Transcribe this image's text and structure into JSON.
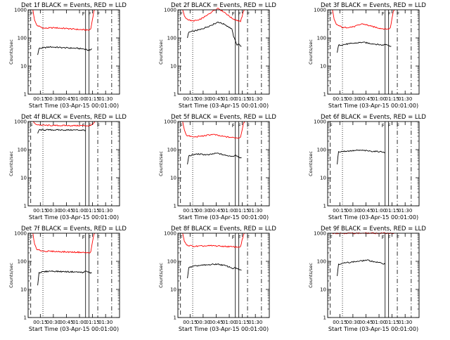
{
  "colors": {
    "events": "#000000",
    "lld": "#ff0000",
    "background": "#ffffff",
    "axes": "#000000"
  },
  "chart_data": [
    {
      "type": "line",
      "title": "Det 1f BLACK = Events, RED = LLD",
      "xlabel": "Start Time (03-Apr-15 00:01:00)",
      "ylabel": "Counts/sec",
      "x_ticks": [
        "00:15",
        "00:30",
        "00:45",
        "01:00",
        "01:15",
        "01:30"
      ],
      "y_ticks": [
        "1",
        "10",
        "100",
        "1000"
      ],
      "y_scale": "log",
      "ylim": [
        1,
        1000
      ],
      "xlim_minutes": [
        0,
        105
      ],
      "flags": [
        "F",
        "F",
        "F",
        "F"
      ],
      "series": [
        {
          "color": "red",
          "x_min": [
            5.5,
            7.5,
            10,
            18,
            30,
            45,
            58,
            70,
            72,
            75.5,
            76.5
          ],
          "values": [
            1000,
            420,
            280,
            220,
            230,
            215,
            200,
            190,
            210,
            900,
            1000
          ]
        },
        {
          "color": "black",
          "x_min": [
            11,
            12.5,
            25,
            40,
            55,
            66,
            70,
            73
          ],
          "values": [
            25,
            42,
            48,
            45,
            43,
            40,
            35,
            42
          ]
        }
      ],
      "vlines": [
        {
          "x_min": 3,
          "style": "dashed"
        },
        {
          "x_min": 17,
          "style": "dotted"
        },
        {
          "x_min": 66,
          "style": "solid"
        },
        {
          "x_min": 70,
          "style": "solid"
        },
        {
          "x_min": 80,
          "style": "dashdot"
        },
        {
          "x_min": 96,
          "style": "dashdot"
        }
      ]
    },
    {
      "type": "line",
      "title": "Det 2f BLACK = Events, RED = LLD",
      "xlabel": "Start Time (03-Apr-15 00:01:00)",
      "ylabel": "Counts/sec",
      "x_ticks": [
        "00:15",
        "00:30",
        "00:45",
        "01:00",
        "01:15",
        "01:30"
      ],
      "y_ticks": [
        "1",
        "10",
        "100",
        "1000"
      ],
      "y_scale": "log",
      "ylim": [
        1,
        1000
      ],
      "xlim_minutes": [
        0,
        105
      ],
      "flags": [
        "F",
        "F",
        "F",
        "F"
      ],
      "series": [
        {
          "color": "red",
          "x_min": [
            5.5,
            7.5,
            10,
            16,
            24,
            33,
            40,
            46,
            54,
            62,
            72,
            75.5,
            76.5
          ],
          "values": [
            1000,
            600,
            480,
            400,
            430,
            620,
            900,
            1150,
            800,
            500,
            380,
            900,
            1000
          ]
        },
        {
          "color": "black",
          "x_min": [
            11,
            12.5,
            18,
            26,
            34,
            42,
            46,
            54,
            62,
            64,
            66,
            68,
            70,
            73
          ],
          "values": [
            100,
            160,
            175,
            200,
            250,
            320,
            370,
            300,
            210,
            110,
            80,
            55,
            60,
            50
          ]
        }
      ],
      "vlines": [
        {
          "x_min": 3,
          "style": "dashed"
        },
        {
          "x_min": 17,
          "style": "dotted"
        },
        {
          "x_min": 66,
          "style": "solid"
        },
        {
          "x_min": 70,
          "style": "solid"
        },
        {
          "x_min": 80,
          "style": "dashdot"
        },
        {
          "x_min": 96,
          "style": "dashdot"
        }
      ]
    },
    {
      "type": "line",
      "title": "Det 3f BLACK = Events, RED = LLD",
      "xlabel": "Start Time (03-Apr-15 00:01:00)",
      "ylabel": "Counts/sec",
      "x_ticks": [
        "00:15",
        "00:30",
        "00:45",
        "01:00",
        "01:15",
        "01:30"
      ],
      "y_ticks": [
        "1",
        "10",
        "100",
        "1000"
      ],
      "y_scale": "log",
      "ylim": [
        1,
        1000
      ],
      "xlim_minutes": [
        0,
        105
      ],
      "flags": [
        "F",
        "F",
        "F",
        "F"
      ],
      "series": [
        {
          "color": "red",
          "x_min": [
            5.5,
            7.5,
            10,
            18,
            30,
            40,
            50,
            62,
            70,
            72,
            75.5,
            76.5
          ],
          "values": [
            1000,
            450,
            300,
            230,
            250,
            320,
            260,
            215,
            205,
            230,
            900,
            1000
          ]
        },
        {
          "color": "black",
          "x_min": [
            11,
            12.5,
            25,
            40,
            55,
            64,
            66,
            70,
            73
          ],
          "values": [
            30,
            55,
            62,
            70,
            60,
            55,
            60,
            55,
            50
          ]
        }
      ],
      "vlines": [
        {
          "x_min": 3,
          "style": "dashed"
        },
        {
          "x_min": 17,
          "style": "dotted"
        },
        {
          "x_min": 66,
          "style": "solid"
        },
        {
          "x_min": 70,
          "style": "solid"
        },
        {
          "x_min": 80,
          "style": "dashdot"
        },
        {
          "x_min": 96,
          "style": "dashdot"
        }
      ]
    },
    {
      "type": "line",
      "title": "Det 4f BLACK = Events, RED = LLD",
      "xlabel": "Start Time (03-Apr-15 00:01:00)",
      "ylabel": "Counts/sec",
      "x_ticks": [
        "00:15",
        "00:30",
        "00:45",
        "01:00",
        "01:15",
        "01:30"
      ],
      "y_ticks": [
        "1",
        "10",
        "100",
        "1000"
      ],
      "y_scale": "log",
      "ylim": [
        1,
        1000
      ],
      "xlim_minutes": [
        0,
        105
      ],
      "flags": [
        "F",
        "F",
        "F",
        "F"
      ],
      "series": [
        {
          "color": "red",
          "x_min": [
            5.5,
            7.5,
            10,
            16,
            30,
            45,
            58,
            70,
            72,
            75.5,
            76.5
          ],
          "values": [
            1000,
            850,
            780,
            740,
            720,
            720,
            715,
            710,
            720,
            900,
            1000
          ]
        },
        {
          "color": "black",
          "x_min": [
            11,
            12.5,
            25,
            40,
            55,
            63,
            66
          ],
          "values": [
            380,
            500,
            505,
            500,
            500,
            495,
            490
          ]
        }
      ],
      "vlines": [
        {
          "x_min": 3,
          "style": "dashed"
        },
        {
          "x_min": 17,
          "style": "dotted"
        },
        {
          "x_min": 66,
          "style": "solid"
        },
        {
          "x_min": 70,
          "style": "solid"
        },
        {
          "x_min": 80,
          "style": "dashdot"
        },
        {
          "x_min": 96,
          "style": "dashdot"
        }
      ]
    },
    {
      "type": "line",
      "title": "Det 5f BLACK = Events, RED = LLD",
      "xlabel": "Start Time (03-Apr-15 00:01:00)",
      "ylabel": "Counts/sec",
      "x_ticks": [
        "00:15",
        "00:30",
        "00:45",
        "01:00",
        "01:15",
        "01:30"
      ],
      "y_ticks": [
        "1",
        "10",
        "100",
        "1000"
      ],
      "y_scale": "log",
      "ylim": [
        1,
        1000
      ],
      "xlim_minutes": [
        0,
        105
      ],
      "flags": [
        "F",
        "F",
        "F",
        "F"
      ],
      "series": [
        {
          "color": "red",
          "x_min": [
            5.5,
            7.5,
            10,
            18,
            30,
            40,
            50,
            62,
            70,
            72,
            75.5,
            76.5
          ],
          "values": [
            1000,
            500,
            320,
            280,
            310,
            350,
            300,
            270,
            260,
            280,
            900,
            1000
          ]
        },
        {
          "color": "black",
          "x_min": [
            11,
            12.5,
            22,
            35,
            45,
            55,
            64,
            66,
            70,
            73
          ],
          "values": [
            30,
            60,
            70,
            65,
            75,
            62,
            58,
            65,
            55,
            50
          ]
        }
      ],
      "vlines": [
        {
          "x_min": 3,
          "style": "dashed"
        },
        {
          "x_min": 17,
          "style": "dotted"
        },
        {
          "x_min": 66,
          "style": "solid"
        },
        {
          "x_min": 70,
          "style": "solid"
        },
        {
          "x_min": 80,
          "style": "dashdot"
        },
        {
          "x_min": 96,
          "style": "dashdot"
        }
      ]
    },
    {
      "type": "line",
      "title": "Det 6f BLACK = Events, RED = LLD",
      "xlabel": "Start Time (03-Apr-15 00:01:00)",
      "ylabel": "Counts/sec",
      "x_ticks": [
        "00:15",
        "00:30",
        "00:45",
        "01:00",
        "01:15",
        "01:30"
      ],
      "y_ticks": [
        "1",
        "10",
        "100",
        "1000"
      ],
      "y_scale": "log",
      "ylim": [
        1,
        1000
      ],
      "xlim_minutes": [
        0,
        105
      ],
      "flags": [
        "F",
        "F",
        "F",
        "F"
      ],
      "series": [
        {
          "color": "black",
          "x_min": [
            11,
            12.5,
            25,
            38,
            50,
            60,
            64,
            66
          ],
          "values": [
            30,
            85,
            90,
            95,
            88,
            85,
            82,
            80
          ]
        }
      ],
      "vlines": [
        {
          "x_min": 3,
          "style": "dashed"
        },
        {
          "x_min": 17,
          "style": "dotted"
        },
        {
          "x_min": 66,
          "style": "solid"
        },
        {
          "x_min": 70,
          "style": "solid"
        },
        {
          "x_min": 80,
          "style": "dashdot"
        },
        {
          "x_min": 96,
          "style": "dashdot"
        }
      ]
    },
    {
      "type": "line",
      "title": "Det 7f BLACK = Events, RED = LLD",
      "xlabel": "Start Time (03-Apr-15 00:01:00)",
      "ylabel": "Counts/sec",
      "x_ticks": [
        "00:15",
        "00:30",
        "00:45",
        "01:00",
        "01:15",
        "01:30"
      ],
      "y_ticks": [
        "1",
        "10",
        "100",
        "1000"
      ],
      "y_scale": "log",
      "ylim": [
        1,
        1000
      ],
      "xlim_minutes": [
        0,
        105
      ],
      "flags": [
        "F",
        "F",
        "F",
        "F"
      ],
      "series": [
        {
          "color": "red",
          "x_min": [
            5.5,
            7.5,
            10,
            18,
            30,
            45,
            60,
            70,
            72,
            75.5,
            76.5
          ],
          "values": [
            1000,
            400,
            260,
            230,
            225,
            215,
            210,
            200,
            220,
            900,
            1000
          ]
        },
        {
          "color": "black",
          "x_min": [
            11,
            12.5,
            25,
            40,
            55,
            64,
            66,
            70,
            73
          ],
          "values": [
            14,
            40,
            45,
            43,
            42,
            40,
            45,
            40,
            38
          ]
        }
      ],
      "vlines": [
        {
          "x_min": 3,
          "style": "dashed"
        },
        {
          "x_min": 17,
          "style": "dotted"
        },
        {
          "x_min": 66,
          "style": "solid"
        },
        {
          "x_min": 70,
          "style": "solid"
        },
        {
          "x_min": 80,
          "style": "dashdot"
        },
        {
          "x_min": 96,
          "style": "dashdot"
        }
      ]
    },
    {
      "type": "line",
      "title": "Det 8f BLACK = Events, RED = LLD",
      "xlabel": "Start Time (03-Apr-15 00:01:00)",
      "ylabel": "Counts/sec",
      "x_ticks": [
        "00:15",
        "00:30",
        "00:45",
        "01:00",
        "01:15",
        "01:30"
      ],
      "y_ticks": [
        "1",
        "10",
        "100",
        "1000"
      ],
      "y_scale": "log",
      "ylim": [
        1,
        1000
      ],
      "xlim_minutes": [
        0,
        105
      ],
      "flags": [
        "F",
        "F",
        "F",
        "F"
      ],
      "series": [
        {
          "color": "red",
          "x_min": [
            5.5,
            7.5,
            10,
            18,
            30,
            40,
            50,
            62,
            70,
            72,
            75.5,
            76.5
          ],
          "values": [
            1000,
            500,
            380,
            340,
            350,
            360,
            345,
            330,
            320,
            340,
            900,
            1000
          ]
        },
        {
          "color": "black",
          "x_min": [
            11,
            12.5,
            22,
            35,
            45,
            55,
            64,
            66,
            70,
            73
          ],
          "values": [
            25,
            60,
            70,
            75,
            80,
            70,
            55,
            60,
            50,
            48
          ]
        }
      ],
      "vlines": [
        {
          "x_min": 3,
          "style": "dashed"
        },
        {
          "x_min": 17,
          "style": "dotted"
        },
        {
          "x_min": 66,
          "style": "solid"
        },
        {
          "x_min": 70,
          "style": "solid"
        },
        {
          "x_min": 80,
          "style": "dashdot"
        },
        {
          "x_min": 96,
          "style": "dashdot"
        }
      ]
    },
    {
      "type": "line",
      "title": "Det 9f BLACK = Events, RED = LLD",
      "xlabel": "Start Time (03-Apr-15 00:01:00)",
      "ylabel": "Counts/sec",
      "x_ticks": [
        "00:15",
        "00:30",
        "00:45",
        "01:00",
        "01:15",
        "01:30"
      ],
      "y_ticks": [
        "1",
        "10",
        "100",
        "1000"
      ],
      "y_scale": "log",
      "ylim": [
        1,
        1000
      ],
      "xlim_minutes": [
        0,
        105
      ],
      "flags": [
        "F",
        "F",
        "F",
        "F"
      ],
      "series": [
        {
          "color": "red",
          "x_min": [
            5.5,
            8,
            20,
            40,
            60,
            70,
            76.5
          ],
          "values": [
            1000,
            1000,
            1000,
            1000,
            1000,
            1000,
            1000
          ]
        },
        {
          "color": "black",
          "x_min": [
            11,
            12.5,
            22,
            35,
            45,
            55,
            62,
            66
          ],
          "values": [
            30,
            80,
            90,
            100,
            110,
            95,
            85,
            80
          ]
        }
      ],
      "vlines": [
        {
          "x_min": 3,
          "style": "dashed"
        },
        {
          "x_min": 17,
          "style": "dotted"
        },
        {
          "x_min": 66,
          "style": "solid"
        },
        {
          "x_min": 70,
          "style": "solid"
        },
        {
          "x_min": 80,
          "style": "dashdot"
        },
        {
          "x_min": 96,
          "style": "dashdot"
        }
      ]
    }
  ]
}
